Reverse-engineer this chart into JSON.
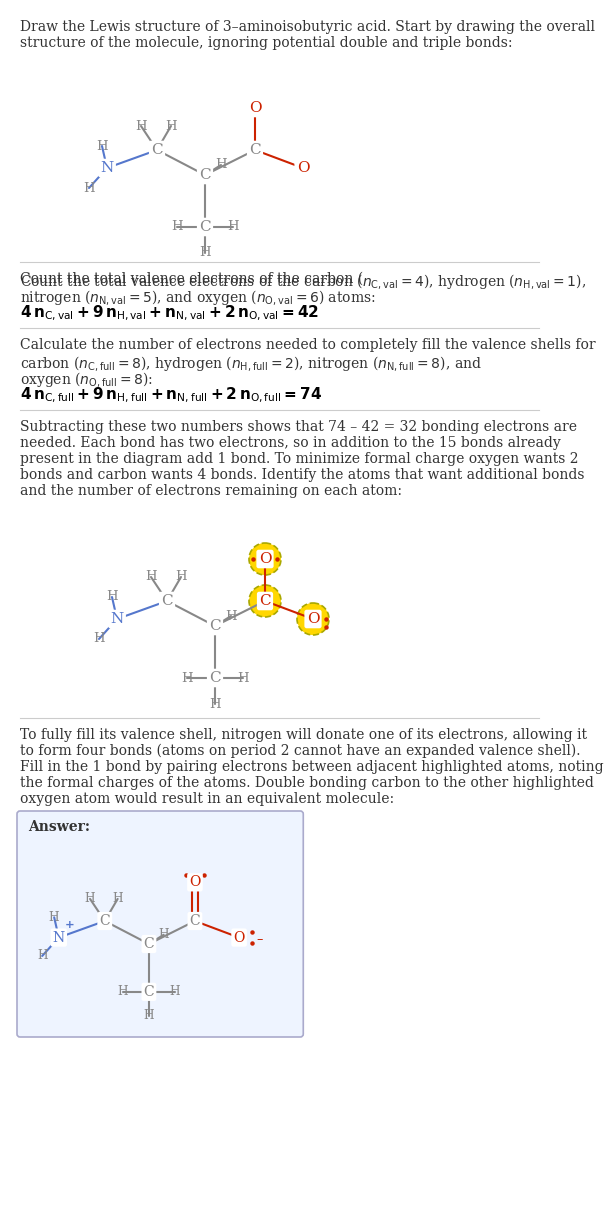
{
  "title_line1": "Draw the Lewis structure of 3–aminoisobutyric acid. Start by drawing the overall",
  "title_line2": "structure of the molecule, ignoring potential double and triple bonds:",
  "sec2_line1": "Count the total valence electrons of the carbon (",
  "sec2_line2": "nitrogen (",
  "sec2_line3": "4 n_{C,val} + 9 n_{H,val} + n_{N,val} + 2 n_{O,val} = 42",
  "sec3_line1": "Calculate the number of electrons needed to completely fill the valence shells for",
  "sec3_line2": "carbon (",
  "sec3_line3": "oxygen (",
  "sec3_line4": "4 n_{C,full} + 9 n_{H,full} + n_{N,full} + 2 n_{O,full} = 74",
  "sec4_lines": [
    "Subtracting these two numbers shows that 74 – 42 = 32 bonding electrons are",
    "needed. Each bond has two electrons, so in addition to the 15 bonds already",
    "present in the diagram add 1 bond. To minimize formal charge oxygen wants 2",
    "bonds and carbon wants 4 bonds. Identify the atoms that want additional bonds",
    "and the number of electrons remaining on each atom:"
  ],
  "sec5_lines": [
    "To fully fill its valence shell, nitrogen will donate one of its electrons, allowing it",
    "to form four bonds (atoms on period 2 cannot have an expanded valence shell).",
    "Fill in the 1 bond by pairing electrons between adjacent highlighted atoms, noting",
    "the formal charges of the atoms. Double bonding carbon to the other highlighted",
    "oxygen atom would result in an equivalent molecule:"
  ],
  "answer_label": "Answer:",
  "gray": "#888888",
  "red": "#cc2200",
  "blue": "#5577cc",
  "highlight_fill": "#FFD700",
  "highlight_edge": "#aaa800",
  "divider_color": "#cccccc",
  "text_color": "#333333",
  "answer_box_fill": "#eef4ff",
  "answer_box_edge": "#aaaacc"
}
